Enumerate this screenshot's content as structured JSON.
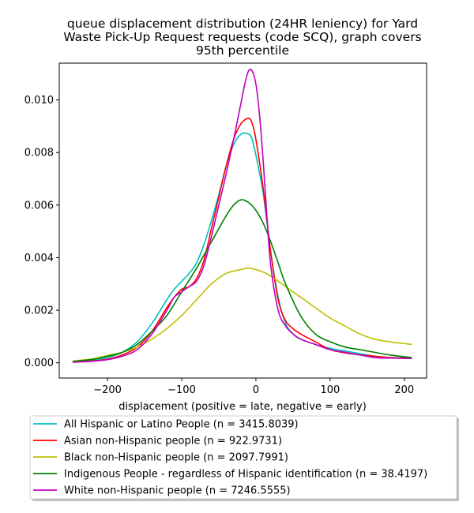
{
  "chart_data": {
    "type": "line",
    "title_lines": [
      "queue displacement distribution (24HR leniency) for Yard",
      "Waste Pick-Up Request  requests (code SCQ), graph covers",
      "95th percentile"
    ],
    "xlabel": "displacement (positive = late, negative = early)",
    "ylabel": "",
    "xlim": [
      -265,
      230
    ],
    "ylim": [
      -0.00058,
      0.0114
    ],
    "xticks": [
      -200,
      -100,
      0,
      100,
      200
    ],
    "xtick_labels": [
      "−200",
      "−100",
      "0",
      "100",
      "200"
    ],
    "yticks": [
      0.0,
      0.002,
      0.004,
      0.006,
      0.008,
      0.01
    ],
    "ytick_labels": [
      "0.000",
      "0.002",
      "0.004",
      "0.006",
      "0.008",
      "0.010"
    ],
    "grid": false,
    "legend_position": "below plot",
    "series": [
      {
        "name": "All Hispanic or Latino People (n = 3415.8039)",
        "color": "#00bfbf",
        "x": [
          -247,
          -220,
          -200,
          -180,
          -160,
          -140,
          -120,
          -110,
          -100,
          -90,
          -80,
          -70,
          -60,
          -50,
          -40,
          -30,
          -20,
          -10,
          -5,
          0,
          10,
          20,
          30,
          40,
          50,
          60,
          80,
          100,
          120,
          140,
          160,
          180,
          210
        ],
        "y": [
          4e-05,
          9e-05,
          0.0002,
          0.0004,
          0.0008,
          0.0015,
          0.0024,
          0.0028,
          0.0031,
          0.0034,
          0.0038,
          0.0045,
          0.0054,
          0.0064,
          0.0075,
          0.0083,
          0.0087,
          0.0087,
          0.0085,
          0.0079,
          0.0064,
          0.0042,
          0.0025,
          0.0015,
          0.0011,
          0.0009,
          0.0007,
          0.00055,
          0.00045,
          0.00035,
          0.00025,
          0.0002,
          0.00018
        ]
      },
      {
        "name": "Asian non-Hispanic people (n = 922.9731)",
        "color": "#ff0000",
        "x": [
          -247,
          -220,
          -200,
          -180,
          -160,
          -140,
          -120,
          -110,
          -100,
          -90,
          -80,
          -70,
          -60,
          -50,
          -40,
          -30,
          -20,
          -10,
          -5,
          0,
          10,
          20,
          30,
          40,
          50,
          60,
          80,
          100,
          120,
          140,
          160,
          180,
          210
        ],
        "y": [
          3e-05,
          7e-05,
          0.00014,
          0.0003,
          0.0006,
          0.0012,
          0.0021,
          0.0025,
          0.0028,
          0.0029,
          0.0032,
          0.0039,
          0.0051,
          0.0063,
          0.0075,
          0.0085,
          0.0091,
          0.0093,
          0.0091,
          0.0085,
          0.0066,
          0.0042,
          0.0024,
          0.0016,
          0.0013,
          0.0011,
          0.0008,
          0.0005,
          0.00038,
          0.0003,
          0.00025,
          0.0002,
          0.00018
        ]
      },
      {
        "name": "Black non-Hispanic people (n = 2097.7991)",
        "color": "#bfbf00",
        "x": [
          -247,
          -220,
          -200,
          -180,
          -160,
          -140,
          -120,
          -100,
          -80,
          -60,
          -40,
          -20,
          -10,
          0,
          10,
          20,
          40,
          60,
          80,
          100,
          120,
          140,
          160,
          180,
          210
        ],
        "y": [
          7e-05,
          0.00015,
          0.00028,
          0.0004,
          0.0006,
          0.0009,
          0.0013,
          0.0018,
          0.0024,
          0.003,
          0.0034,
          0.00355,
          0.0036,
          0.00355,
          0.00345,
          0.0033,
          0.0029,
          0.0025,
          0.0021,
          0.0017,
          0.0014,
          0.0011,
          0.0009,
          0.0008,
          0.0007
        ]
      },
      {
        "name": "Indigenous People - regardless of Hispanic identification (n = 38.4197)",
        "color": "#008000",
        "x": [
          -247,
          -220,
          -200,
          -180,
          -160,
          -140,
          -120,
          -100,
          -80,
          -60,
          -40,
          -30,
          -20,
          -10,
          0,
          10,
          20,
          30,
          40,
          60,
          80,
          100,
          120,
          140,
          160,
          180,
          210
        ],
        "y": [
          5e-05,
          0.00013,
          0.00025,
          0.0004,
          0.0007,
          0.0012,
          0.0018,
          0.0027,
          0.0036,
          0.0046,
          0.0056,
          0.006,
          0.0062,
          0.0061,
          0.0058,
          0.0053,
          0.0046,
          0.0038,
          0.003,
          0.0018,
          0.0011,
          0.0008,
          0.0006,
          0.0005,
          0.0004,
          0.0003,
          0.0002
        ]
      },
      {
        "name": "White non-Hispanic people (n = 7246.5555)",
        "color": "#bf00bf",
        "x": [
          -247,
          -220,
          -200,
          -180,
          -160,
          -140,
          -120,
          -110,
          -100,
          -90,
          -80,
          -70,
          -60,
          -50,
          -40,
          -30,
          -20,
          -15,
          -10,
          -5,
          0,
          5,
          10,
          15,
          20,
          30,
          40,
          50,
          60,
          80,
          100,
          120,
          140,
          160,
          180,
          210
        ],
        "y": [
          2e-05,
          6e-05,
          0.00012,
          0.00025,
          0.0005,
          0.0011,
          0.002,
          0.0025,
          0.0027,
          0.0029,
          0.0031,
          0.0037,
          0.0048,
          0.006,
          0.0072,
          0.0085,
          0.0099,
          0.0106,
          0.0111,
          0.0111,
          0.0106,
          0.0094,
          0.0076,
          0.0055,
          0.0037,
          0.002,
          0.0014,
          0.0011,
          0.0009,
          0.0007,
          0.0005,
          0.0004,
          0.0003,
          0.0002,
          0.00018,
          0.00016
        ]
      }
    ]
  }
}
